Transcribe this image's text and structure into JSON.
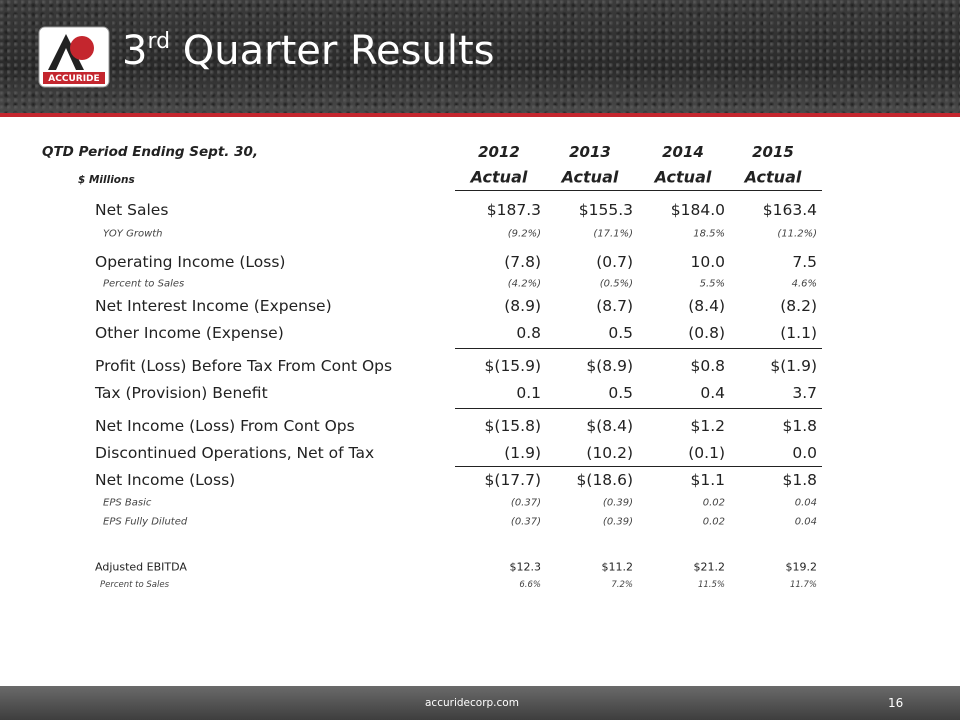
{
  "header": {
    "title_number": "3",
    "title_suffix": "rd",
    "title_text": "Quarter Results",
    "logo_text": "ACCURIDE"
  },
  "table": {
    "period_label": "QTD Period Ending Sept. 30,",
    "unit_label": "$ Millions",
    "years": [
      "2012",
      "2013",
      "2014",
      "2015"
    ],
    "subheads": [
      "Actual",
      "Actual",
      "Actual",
      "Actual"
    ],
    "rows": [
      [
        "Net Sales",
        "$187.3",
        "$155.3",
        "$184.0",
        "$163.4"
      ],
      [
        "YOY Growth",
        "(9.2%)",
        "(17.1%)",
        "18.5%",
        "(11.2%)"
      ],
      [
        "Operating Income (Loss)",
        "(7.8)",
        "(0.7)",
        "10.0",
        "7.5"
      ],
      [
        "Percent to Sales",
        "(4.2%)",
        "(0.5%)",
        "5.5%",
        "4.6%"
      ],
      [
        "Net Interest Income (Expense)",
        "(8.9)",
        "(8.7)",
        "(8.4)",
        "(8.2)"
      ],
      [
        "Other Income (Expense)",
        "0.8",
        "0.5",
        "(0.8)",
        "(1.1)"
      ],
      [
        "Profit (Loss) Before Tax From Cont Ops",
        "$(15.9)",
        "$(8.9)",
        "$0.8",
        "$(1.9)"
      ],
      [
        "Tax (Provision) Benefit",
        "0.1",
        "0.5",
        "0.4",
        "3.7"
      ],
      [
        "Net Income (Loss) From Cont Ops",
        "$(15.8)",
        "$(8.4)",
        "$1.2",
        "$1.8"
      ],
      [
        "Discontinued Operations, Net of Tax",
        "(1.9)",
        "(10.2)",
        "(0.1)",
        "0.0"
      ],
      [
        "Net Income (Loss)",
        "$(17.7)",
        "$(18.6)",
        "$1.1",
        "$1.8"
      ],
      [
        "EPS Basic",
        "(0.37)",
        "(0.39)",
        "0.02",
        "0.04"
      ],
      [
        "EPS Fully Diluted",
        "(0.37)",
        "(0.39)",
        "0.02",
        "0.04"
      ],
      [
        "Adjusted EBITDA",
        "$12.3",
        "$11.2",
        "$21.2",
        "$19.2"
      ],
      [
        "Percent to Sales",
        "6.6%",
        "7.2%",
        "11.5%",
        "11.7%"
      ]
    ]
  },
  "footer": {
    "url": "accuridecorp.com",
    "page": "16"
  }
}
